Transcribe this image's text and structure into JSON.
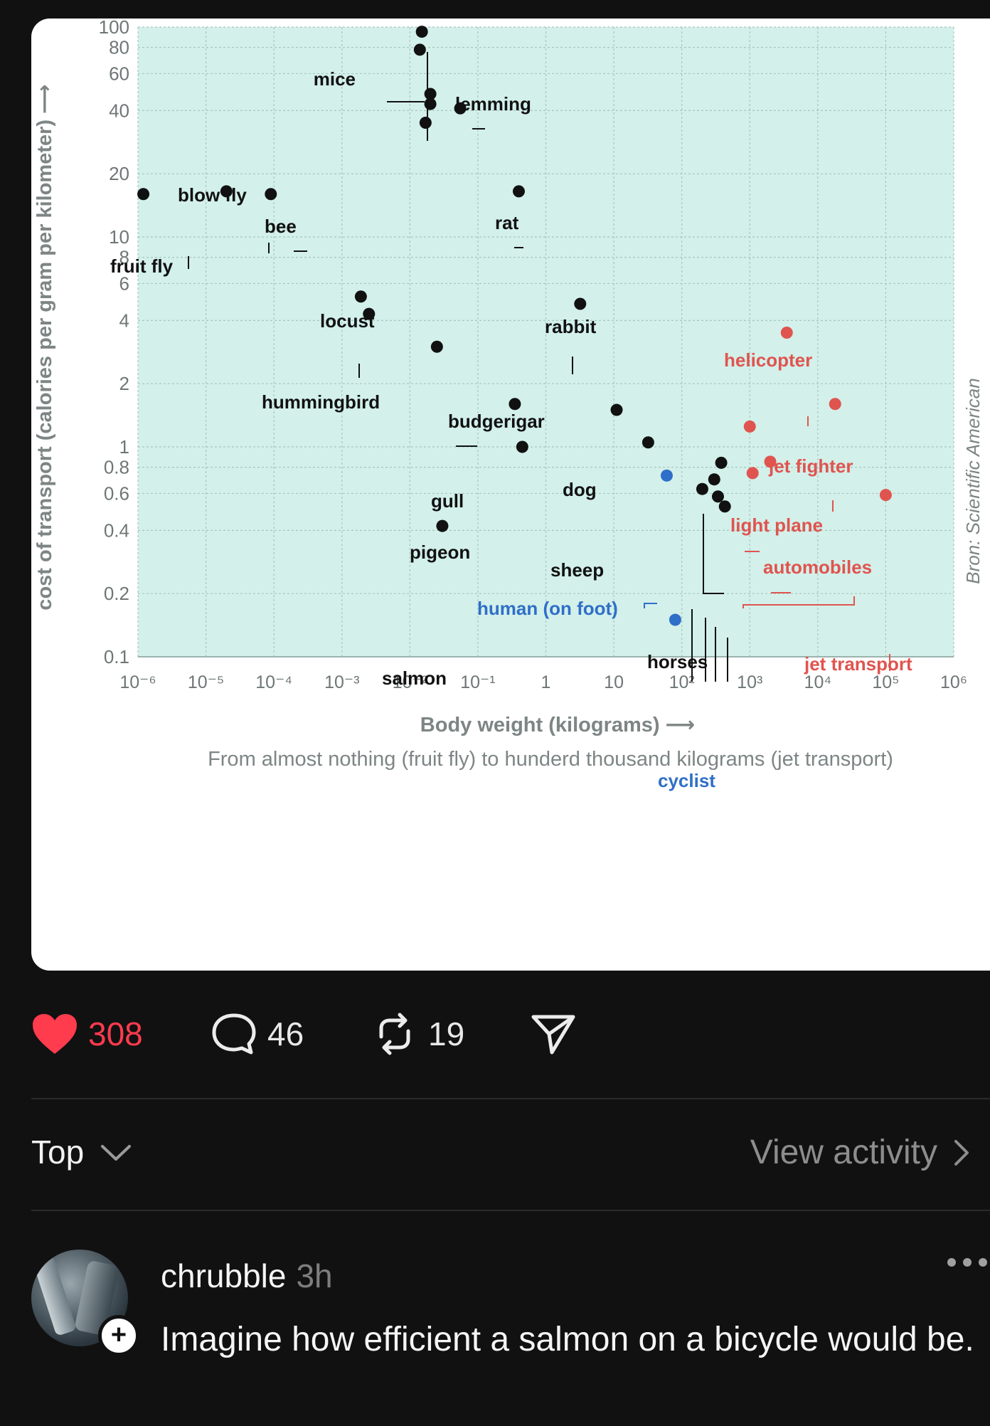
{
  "chart_data": {
    "type": "scatter",
    "x_scale": "log",
    "y_scale": "log",
    "xlim": [
      1e-06,
      1000000.0
    ],
    "ylim": [
      0.1,
      100
    ],
    "ylabel": "cost of transport (calories per gram per kilometer) ⟶",
    "xlabel": "Body weight (kilograms) ⟶",
    "subtitle": "From almost nothing (fruit fly) to hunderd thousand kilograms (jet transport)",
    "source": "Bron: Scientific American",
    "y_ticks": [
      {
        "value": 100,
        "label": "100"
      },
      {
        "value": 80,
        "label": "80"
      },
      {
        "value": 60,
        "label": "60"
      },
      {
        "value": 40,
        "label": "40"
      },
      {
        "value": 20,
        "label": "20"
      },
      {
        "value": 10,
        "label": "10"
      },
      {
        "value": 8,
        "label": "8"
      },
      {
        "value": 6,
        "label": "6"
      },
      {
        "value": 4,
        "label": "4"
      },
      {
        "value": 2,
        "label": "2"
      },
      {
        "value": 1,
        "label": "1"
      },
      {
        "value": 0.8,
        "label": "0.8"
      },
      {
        "value": 0.6,
        "label": "0.6"
      },
      {
        "value": 0.4,
        "label": "0.4"
      },
      {
        "value": 0.2,
        "label": "0.2"
      },
      {
        "value": 0.1,
        "label": "0.1"
      }
    ],
    "x_ticks": [
      {
        "value": 1e-06,
        "label": "10⁻⁶"
      },
      {
        "value": 1e-05,
        "label": "10⁻⁵"
      },
      {
        "value": 0.0001,
        "label": "10⁻⁴"
      },
      {
        "value": 0.001,
        "label": "10⁻³"
      },
      {
        "value": 0.01,
        "label": "10⁻²"
      },
      {
        "value": 0.1,
        "label": "10⁻¹"
      },
      {
        "value": 1,
        "label": "1"
      },
      {
        "value": 10,
        "label": "10"
      },
      {
        "value": 100,
        "label": "10²"
      },
      {
        "value": 1000,
        "label": "10³"
      },
      {
        "value": 10000,
        "label": "10⁴"
      },
      {
        "value": 100000,
        "label": "10⁵"
      },
      {
        "value": 1000000,
        "label": "10⁶"
      }
    ],
    "colors": {
      "animal": "#111111",
      "machine": "#e0544f",
      "human": "#2f6fc9",
      "background": "#d3f0ea",
      "grid": "#a8c6c0"
    },
    "points": [
      {
        "x": 0.015,
        "y": 95,
        "cat": "animal"
      },
      {
        "x": 0.014,
        "y": 78,
        "cat": "animal"
      },
      {
        "x": 0.02,
        "y": 48,
        "cat": "animal"
      },
      {
        "x": 0.02,
        "y": 43,
        "cat": "animal"
      },
      {
        "x": 0.017,
        "y": 35,
        "cat": "animal"
      },
      {
        "x": 0.055,
        "y": 41,
        "cat": "animal"
      },
      {
        "x": 1.2e-06,
        "y": 16,
        "cat": "animal"
      },
      {
        "x": 2e-05,
        "y": 16.5,
        "cat": "animal"
      },
      {
        "x": 9e-05,
        "y": 16,
        "cat": "animal"
      },
      {
        "x": 0.4,
        "y": 16.5,
        "cat": "animal"
      },
      {
        "x": 0.0019,
        "y": 5.2,
        "cat": "animal"
      },
      {
        "x": 0.0025,
        "y": 4.3,
        "cat": "animal"
      },
      {
        "x": 3.2,
        "y": 4.8,
        "cat": "animal"
      },
      {
        "x": 0.025,
        "y": 3.0,
        "cat": "animal"
      },
      {
        "x": 0.35,
        "y": 1.6,
        "cat": "animal"
      },
      {
        "x": 0.45,
        "y": 1.0,
        "cat": "animal"
      },
      {
        "x": 11,
        "y": 1.5,
        "cat": "animal"
      },
      {
        "x": 32,
        "y": 1.05,
        "cat": "animal"
      },
      {
        "x": 0.03,
        "y": 0.42,
        "cat": "animal"
      },
      {
        "x": 380,
        "y": 0.84,
        "cat": "animal"
      },
      {
        "x": 300,
        "y": 0.7,
        "cat": "animal"
      },
      {
        "x": 200,
        "y": 0.63,
        "cat": "animal"
      },
      {
        "x": 340,
        "y": 0.58,
        "cat": "animal"
      },
      {
        "x": 430,
        "y": 0.52,
        "cat": "animal"
      },
      {
        "x": 60,
        "y": 0.73,
        "cat": "human"
      },
      {
        "x": 80,
        "y": 0.15,
        "cat": "human"
      },
      {
        "x": 3500,
        "y": 3.5,
        "cat": "machine"
      },
      {
        "x": 18000,
        "y": 1.6,
        "cat": "machine"
      },
      {
        "x": 1000,
        "y": 1.25,
        "cat": "machine"
      },
      {
        "x": 2000,
        "y": 0.85,
        "cat": "machine"
      },
      {
        "x": 1100,
        "y": 0.75,
        "cat": "machine"
      },
      {
        "x": 100000,
        "y": 0.59,
        "cat": "machine"
      }
    ],
    "labels": [
      {
        "text": "mice",
        "cat": "animal"
      },
      {
        "text": "lemming",
        "cat": "animal"
      },
      {
        "text": "blow fly",
        "cat": "animal"
      },
      {
        "text": "bee",
        "cat": "animal"
      },
      {
        "text": "fruit fly",
        "cat": "animal"
      },
      {
        "text": "rat",
        "cat": "animal"
      },
      {
        "text": "locust",
        "cat": "animal"
      },
      {
        "text": "hummingbird",
        "cat": "animal"
      },
      {
        "text": "rabbit",
        "cat": "animal"
      },
      {
        "text": "budgerigar",
        "cat": "animal"
      },
      {
        "text": "gull",
        "cat": "animal"
      },
      {
        "text": "pigeon",
        "cat": "animal"
      },
      {
        "text": "dog",
        "cat": "animal"
      },
      {
        "text": "sheep",
        "cat": "animal"
      },
      {
        "text": "salmon",
        "cat": "animal"
      },
      {
        "text": "horses",
        "cat": "animal"
      },
      {
        "text": "human (on foot)",
        "cat": "human"
      },
      {
        "text": "cyclist",
        "cat": "human"
      },
      {
        "text": "helicopter",
        "cat": "machine"
      },
      {
        "text": "jet fighter",
        "cat": "machine"
      },
      {
        "text": "light plane",
        "cat": "machine"
      },
      {
        "text": "automobiles",
        "cat": "machine"
      },
      {
        "text": "jet transport",
        "cat": "machine"
      }
    ]
  },
  "actions": {
    "like_count": "308",
    "comment_count": "46",
    "repost_count": "19",
    "like_color": "#ff3b4e"
  },
  "sort": {
    "label": "Top"
  },
  "activity": {
    "label": "View activity"
  },
  "comment": {
    "username": "chrubble",
    "time": "3h",
    "text": "Imagine how efficient a salmon on a bicycle would be."
  }
}
